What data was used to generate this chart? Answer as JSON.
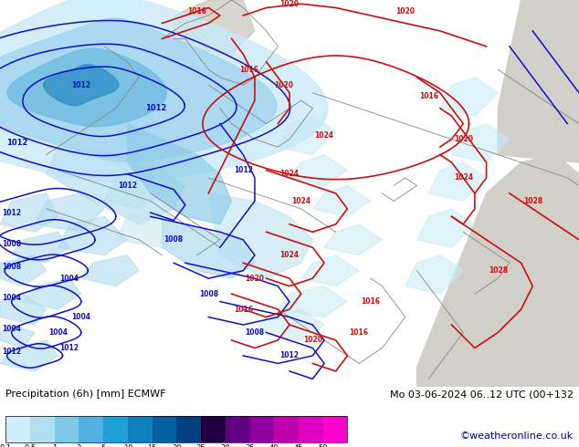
{
  "title_left": "Precipitation (6h) [mm] ECMWF",
  "title_right": "Mo 03-06-2024 06..12 UTC (00+132",
  "credit": "©weatheronline.co.uk",
  "colorbar_colors": [
    "#d0eef8",
    "#b0dff0",
    "#80c8e8",
    "#50b0e0",
    "#20a0d8",
    "#1080c0",
    "#0060a0",
    "#004080",
    "#200040",
    "#600080",
    "#9000a0",
    "#c000b0",
    "#e000c0",
    "#ff00d0"
  ],
  "colorbar_labels": [
    "0.1",
    "0.5",
    "1",
    "2",
    "5",
    "10",
    "15",
    "20",
    "25",
    "30",
    "35",
    "40",
    "45",
    "50"
  ],
  "fig_width": 6.34,
  "fig_height": 4.9,
  "dpi": 100,
  "map_green": "#c8e8a0",
  "map_gray": "#c8c8c8",
  "map_light_gray": "#d8d8d0",
  "blue_color": "#1010cc",
  "red_color": "#cc1010"
}
